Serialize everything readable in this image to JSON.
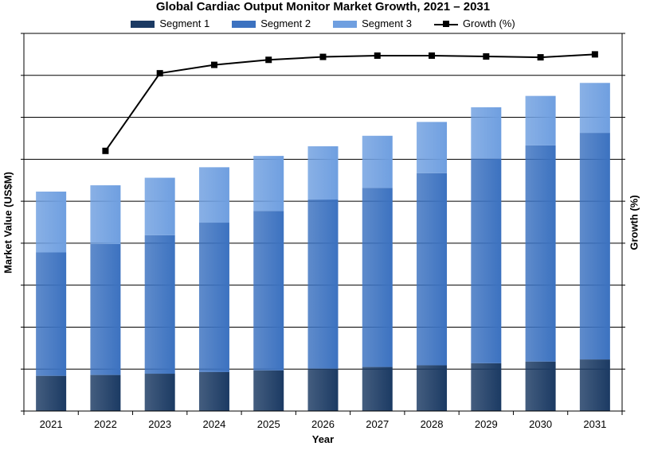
{
  "chart_data": {
    "type": "bar",
    "title": "Global Cardiac Output Monitor Market Growth, 2021 – 2031",
    "xlabel": "Year",
    "ylabel": "Market Value (US$M)",
    "y2label": "Growth (%)",
    "categories": [
      "2021",
      "2022",
      "2023",
      "2024",
      "2025",
      "2026",
      "2027",
      "2028",
      "2029",
      "2030",
      "2031"
    ],
    "stacked": true,
    "ylim": [
      0,
      9
    ],
    "y2lim": [
      0,
      9
    ],
    "grid": true,
    "legend_position": "top",
    "series": [
      {
        "name": "Segment 1",
        "type": "bar",
        "color": "#1b3a63",
        "values": [
          0.84,
          0.86,
          0.89,
          0.93,
          0.97,
          1.01,
          1.05,
          1.09,
          1.14,
          1.18,
          1.23
        ]
      },
      {
        "name": "Segment 2",
        "type": "bar",
        "color": "#3c72c0",
        "values": [
          2.94,
          3.12,
          3.3,
          3.56,
          3.8,
          4.03,
          4.27,
          4.58,
          4.88,
          5.15,
          5.4
        ]
      },
      {
        "name": "Segment 3",
        "type": "bar",
        "color": "#6f9fe0",
        "values": [
          1.45,
          1.4,
          1.37,
          1.32,
          1.31,
          1.27,
          1.24,
          1.22,
          1.22,
          1.18,
          1.19
        ]
      },
      {
        "name": "Growth (%)",
        "type": "line",
        "color": "#000000",
        "values": [
          null,
          6.2,
          8.05,
          8.25,
          8.37,
          8.44,
          8.47,
          8.47,
          8.45,
          8.43,
          8.5
        ]
      }
    ]
  }
}
